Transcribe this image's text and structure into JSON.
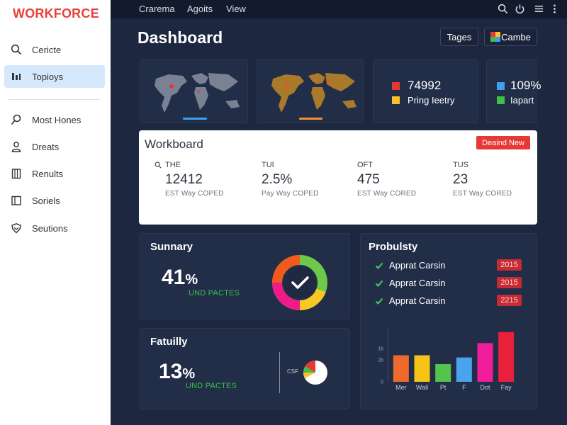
{
  "sidebar": {
    "brand": "WORKFORCE",
    "items_top": [
      {
        "label": "Cericte",
        "icon": "search-icon"
      },
      {
        "label": "Topioys",
        "icon": "topics-icon",
        "active": true
      }
    ],
    "items": [
      {
        "label": "Most Hones",
        "icon": "search-icon"
      },
      {
        "label": "Dreats",
        "icon": "person-icon"
      },
      {
        "label": "Renults",
        "icon": "document-icon"
      },
      {
        "label": "Soriels",
        "icon": "layout-icon"
      },
      {
        "label": "Seutions",
        "icon": "shield-icon"
      }
    ]
  },
  "topbar": {
    "menus": [
      "Crarema",
      "Agoits",
      "View"
    ],
    "icons": [
      "search-icon",
      "power-icon",
      "menu-icon",
      "more-vertical-icon"
    ]
  },
  "header": {
    "title": "Dashboard",
    "tages_label": "Tages",
    "cambe_label": "Cambe"
  },
  "stats": {
    "left": [
      {
        "value": "74992",
        "color": "#e53935"
      },
      {
        "label": "Pring Ieetry",
        "color": "#f9c12b"
      }
    ],
    "right": [
      {
        "value": "109%",
        "color": "#3ea0f0"
      },
      {
        "label": "Iapart",
        "color": "#3fbf4a"
      }
    ]
  },
  "workboard": {
    "title": "Workboard",
    "button_label": "Deaind New",
    "columns": [
      {
        "label": "THE",
        "value": "12412",
        "sub": "EST Way COPED",
        "has_search": true
      },
      {
        "label": "TUI",
        "value": "2.5%",
        "sub": "Pay Way COPED"
      },
      {
        "label": "OFT",
        "value": "475",
        "sub": "EST Way CORED"
      },
      {
        "label": "TUS",
        "value": "23",
        "sub": "EST Way CORED"
      }
    ]
  },
  "summary": {
    "title": "Sunnary",
    "value": "41",
    "unit": "%",
    "sub": "UND PACTES",
    "donut_colors": [
      "#f7c925",
      "#ee1c8a",
      "#f05a1c",
      "#6cc94a"
    ]
  },
  "fatuilly": {
    "title": "Fatuilly",
    "value": "13",
    "unit": "%",
    "sub": "UND PACTES",
    "pie_label": "CSF"
  },
  "probulsty": {
    "title": "Probulsty",
    "items": [
      {
        "label": "Apprat Carsin",
        "badge": "2015"
      },
      {
        "label": "Apprat Carsin",
        "badge": "2015"
      },
      {
        "label": "Apprat Carsin",
        "badge": "2215"
      }
    ]
  },
  "chart_data": {
    "type": "bar",
    "categories": [
      "Mer",
      "Wall",
      "Pt",
      "F",
      "Dot",
      "Fay"
    ],
    "values": [
      24,
      24,
      16,
      22,
      35,
      45
    ],
    "colors": [
      "#ee6a2c",
      "#f6c417",
      "#54c54a",
      "#4aa3ef",
      "#f01e9a",
      "#e8203c"
    ],
    "ylabel": "",
    "xlabel": "",
    "ylim": [
      0,
      50
    ],
    "yticks": [
      0,
      20,
      30
    ],
    "ytick_labels": [
      "0",
      "2b",
      "1b"
    ]
  }
}
